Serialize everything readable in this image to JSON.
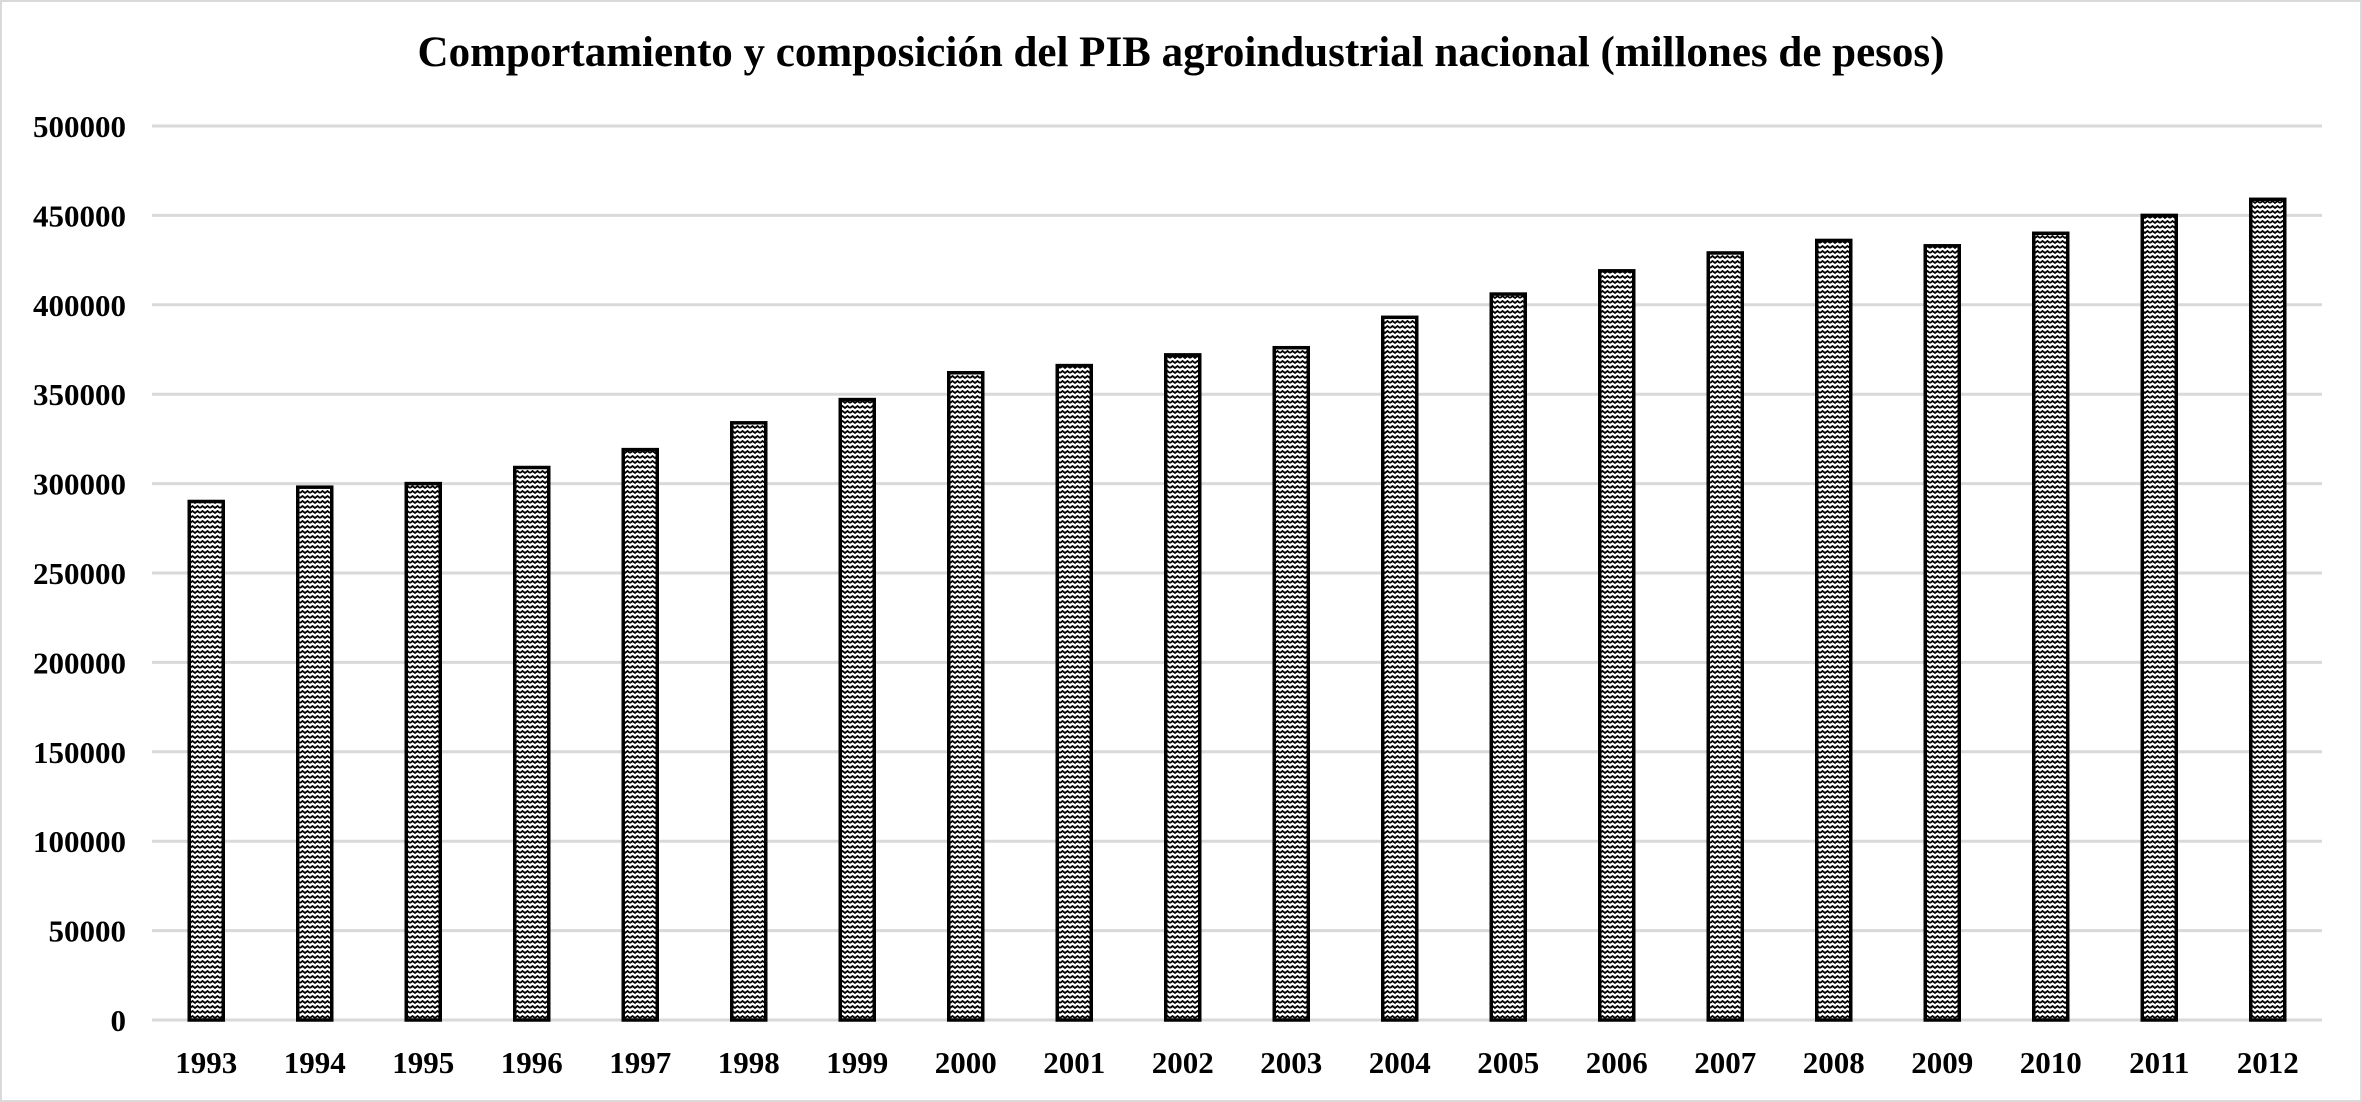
{
  "chart_data": {
    "type": "bar",
    "title": "Comportamiento y composición del PIB agroindustrial nacional (millones de pesos)",
    "xlabel": "",
    "ylabel": "",
    "categories": [
      "1993",
      "1994",
      "1995",
      "1996",
      "1997",
      "1998",
      "1999",
      "2000",
      "2001",
      "2002",
      "2003",
      "2004",
      "2005",
      "2006",
      "2007",
      "2008",
      "2009",
      "2010",
      "2011",
      "2012"
    ],
    "values": [
      290000,
      298000,
      300000,
      309000,
      319000,
      334000,
      347000,
      362000,
      366000,
      372000,
      376000,
      393000,
      406000,
      419000,
      429000,
      436000,
      433000,
      440000,
      450000,
      459000
    ],
    "ylim": [
      0,
      500000
    ],
    "yticks": [
      "0",
      "50000",
      "100000",
      "150000",
      "200000",
      "250000",
      "300000",
      "350000",
      "400000",
      "450000",
      "500000"
    ],
    "grid": true,
    "legend": "none",
    "colors": {
      "grid": "#d9d9d9",
      "bar_outline": "#000000",
      "bar_fill": "#ffffff",
      "bar_pattern": "#000000",
      "text": "#000000"
    }
  }
}
